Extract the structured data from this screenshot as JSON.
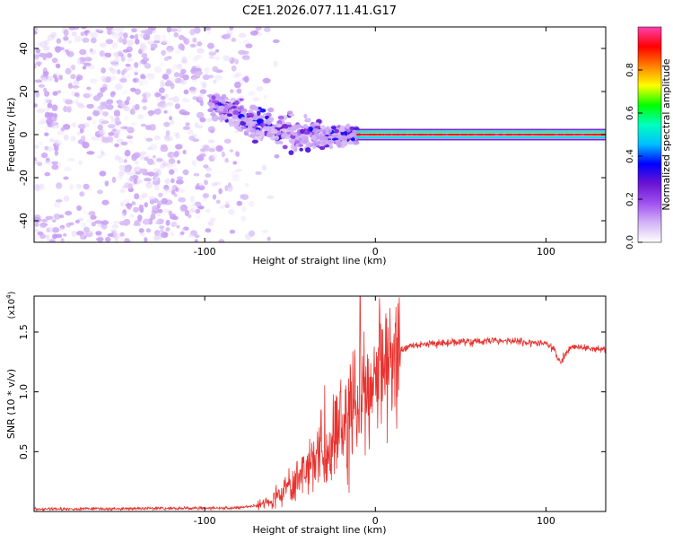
{
  "title": "C2E1.2026.077.11.41.G17",
  "colors": {
    "snr_line": "#e8322e",
    "axis": "#000000",
    "background": "#ffffff"
  },
  "chart_data": [
    {
      "type": "heatmap",
      "title": "C2E1.2026.077.11.41.G17",
      "xlabel": "Height of straight line (km)",
      "ylabel": "Frequency (Hz)",
      "xlim": [
        -200,
        135
      ],
      "ylim": [
        -50,
        50
      ],
      "xticks": [
        -100,
        0,
        100
      ],
      "xtick_labels": [
        "-100",
        "0",
        "100"
      ],
      "yticks": [
        -40,
        -20,
        0,
        20,
        40
      ],
      "ytick_labels": [
        "-40",
        "-20",
        "0",
        "20",
        "40"
      ],
      "colorbar": {
        "label": "Normalized spectral amplitude",
        "range": [
          0,
          1
        ],
        "ticks": [
          0.0,
          0.2,
          0.4,
          0.6,
          0.8
        ],
        "tick_labels": [
          "0.0",
          "0.2",
          "0.4",
          "0.6",
          "0.8"
        ],
        "colormap": [
          "#ffffff",
          "#d2b4f5",
          "#a050f0",
          "#6a14d2",
          "#0000ff",
          "#00bfff",
          "#00ffc0",
          "#00ff00",
          "#ffff00",
          "#ff8000",
          "#ff0000",
          "#ff40b0"
        ]
      },
      "features": {
        "noise_region_x": [
          -200,
          -65
        ],
        "transition_region_x": [
          -97,
          -10
        ],
        "tone_region_x": [
          -10,
          135
        ],
        "tone_frequency": 0
      }
    },
    {
      "type": "line",
      "xlabel": "Height of straight line (km)",
      "ylabel": "SNR (10 * v/v)",
      "scale_label": "(x10",
      "scale_exponent": "4",
      "scale_suffix": ")",
      "xlim": [
        -200,
        135
      ],
      "ylim": [
        0,
        1.8
      ],
      "xticks": [
        -100,
        0,
        100
      ],
      "xtick_labels": [
        "-100",
        "0",
        "100"
      ],
      "yticks": [
        0.5,
        1.0,
        1.5
      ],
      "ytick_labels": [
        "0.5",
        "1.0",
        "1.5"
      ],
      "series": [
        {
          "name": "SNR",
          "color": "#e8322e",
          "profile_x": [
            -200,
            -80,
            -70,
            -60,
            -50,
            -40,
            -30,
            -20,
            -15,
            -10,
            -5,
            0,
            5,
            10,
            20,
            30,
            40,
            50,
            60,
            70,
            80,
            90,
            100,
            105,
            108,
            115,
            125,
            135
          ],
          "profile_y": [
            0.02,
            0.03,
            0.05,
            0.1,
            0.2,
            0.35,
            0.5,
            0.65,
            0.8,
            0.9,
            1.0,
            1.1,
            1.2,
            1.3,
            1.38,
            1.4,
            1.41,
            1.42,
            1.42,
            1.43,
            1.43,
            1.41,
            1.4,
            1.35,
            1.25,
            1.38,
            1.37,
            1.35
          ],
          "peak": {
            "x": -9,
            "y": 1.8
          }
        }
      ]
    }
  ]
}
